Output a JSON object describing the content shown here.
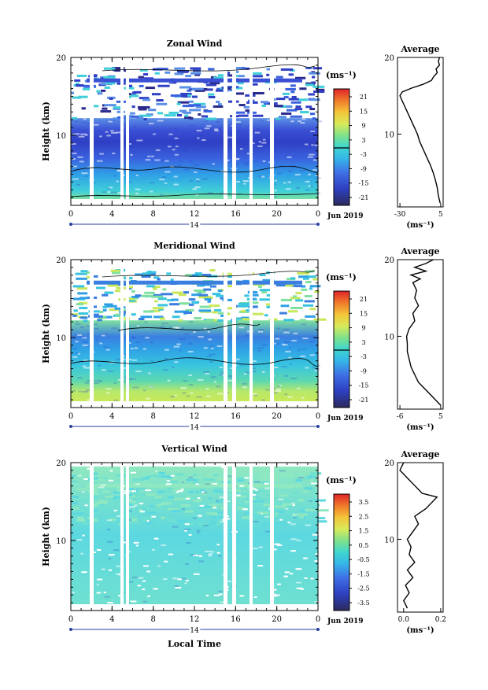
{
  "figure": {
    "date_label": "Jun 2019",
    "xlabel": "Local Time",
    "unit_label": "(ms⁻¹)"
  },
  "chart_data": [
    {
      "type": "heatmap",
      "title": "Zonal Wind",
      "ylabel": "Height (km)",
      "xlabel": "",
      "x_ticks": [
        "0",
        "4",
        "8",
        "12",
        "16",
        "20",
        "0"
      ],
      "day_label": "14",
      "y_ticks": [
        10,
        20
      ],
      "ylim": [
        1,
        20
      ],
      "colorbar": {
        "label": "(ms⁻¹)",
        "ticks": [
          "21",
          "15",
          "9",
          "3",
          "-3",
          "-9",
          "-15",
          "-21"
        ],
        "range": [
          -24,
          24
        ]
      },
      "profile_panel": {
        "title": "Average",
        "unit": "(ms⁻¹)",
        "x_ticks": [
          "-30",
          "5"
        ],
        "y_ticks": [
          10,
          20
        ],
        "points": [
          [
            4.5,
            1
          ],
          [
            3,
            2
          ],
          [
            2,
            3
          ],
          [
            0.5,
            4
          ],
          [
            -1.5,
            5
          ],
          [
            -4,
            6
          ],
          [
            -7,
            7
          ],
          [
            -10,
            8
          ],
          [
            -13,
            9
          ],
          [
            -15,
            10
          ],
          [
            -18,
            11
          ],
          [
            -21,
            12
          ],
          [
            -24,
            13
          ],
          [
            -27,
            14
          ],
          [
            -30,
            15
          ],
          [
            -28,
            15.5
          ],
          [
            -20,
            16
          ],
          [
            -10,
            16.5
          ],
          [
            -3,
            17
          ],
          [
            -1,
            17.5
          ],
          [
            2,
            18
          ],
          [
            1,
            18.5
          ],
          [
            4,
            19
          ],
          [
            3,
            19.5
          ],
          [
            4,
            20
          ]
        ]
      }
    },
    {
      "type": "heatmap",
      "title": "Meridional Wind",
      "ylabel": "Height (km)",
      "xlabel": "",
      "x_ticks": [
        "0",
        "4",
        "8",
        "12",
        "16",
        "20",
        "0"
      ],
      "day_label": "14",
      "y_ticks": [
        10,
        20
      ],
      "ylim": [
        1,
        20
      ],
      "colorbar": {
        "label": "(ms⁻¹)",
        "ticks": [
          "21",
          "15",
          "9",
          "3",
          "-3",
          "-9",
          "-15",
          "-21"
        ],
        "range": [
          -24,
          24
        ]
      },
      "profile_panel": {
        "title": "Average",
        "unit": "(ms⁻¹)",
        "x_ticks": [
          "-6",
          "5"
        ],
        "y_ticks": [
          10,
          20
        ],
        "points": [
          [
            5,
            1
          ],
          [
            3,
            2
          ],
          [
            1,
            3
          ],
          [
            -1,
            4
          ],
          [
            -2,
            5
          ],
          [
            -3,
            6
          ],
          [
            -3.5,
            7
          ],
          [
            -4,
            8
          ],
          [
            -4,
            9
          ],
          [
            -4.2,
            10
          ],
          [
            -3.5,
            11
          ],
          [
            -2,
            12
          ],
          [
            -2.5,
            13
          ],
          [
            -1,
            14
          ],
          [
            -2,
            15
          ],
          [
            -1.5,
            16
          ],
          [
            -2.5,
            17
          ],
          [
            -0.5,
            17.5
          ],
          [
            -3,
            18
          ],
          [
            1,
            18.5
          ],
          [
            -2,
            19
          ],
          [
            1,
            19.5
          ],
          [
            3,
            20
          ]
        ]
      }
    },
    {
      "type": "heatmap",
      "title": "Vertical Wind",
      "ylabel": "Height (km)",
      "xlabel": "Local Time",
      "x_ticks": [
        "0",
        "4",
        "8",
        "12",
        "16",
        "20",
        "0"
      ],
      "day_label": "14",
      "y_ticks": [
        10,
        20
      ],
      "ylim": [
        1,
        20
      ],
      "colorbar": {
        "label": "(ms⁻¹)",
        "ticks": [
          "3.5",
          "2.5",
          "1.5",
          "0.5",
          "-0.5",
          "-1.5",
          "-2.5",
          "-3.5"
        ],
        "range": [
          -4,
          4
        ]
      },
      "profile_panel": {
        "title": "Average",
        "unit": "(ms⁻¹)",
        "x_ticks": [
          "0.0",
          "0.2"
        ],
        "y_ticks": [
          10,
          20
        ],
        "points": [
          [
            0.02,
            1
          ],
          [
            0.0,
            2
          ],
          [
            0.03,
            3
          ],
          [
            0.01,
            4
          ],
          [
            0.05,
            5
          ],
          [
            0.02,
            6
          ],
          [
            0.06,
            7
          ],
          [
            0.03,
            8
          ],
          [
            0.04,
            9
          ],
          [
            0.02,
            10
          ],
          [
            0.05,
            11
          ],
          [
            0.08,
            12
          ],
          [
            0.06,
            13
          ],
          [
            0.12,
            14
          ],
          [
            0.16,
            15
          ],
          [
            0.18,
            15.5
          ],
          [
            0.1,
            16
          ],
          [
            0.06,
            17
          ],
          [
            0.02,
            18
          ],
          [
            -0.02,
            19
          ],
          [
            0.0,
            20
          ]
        ]
      }
    }
  ]
}
